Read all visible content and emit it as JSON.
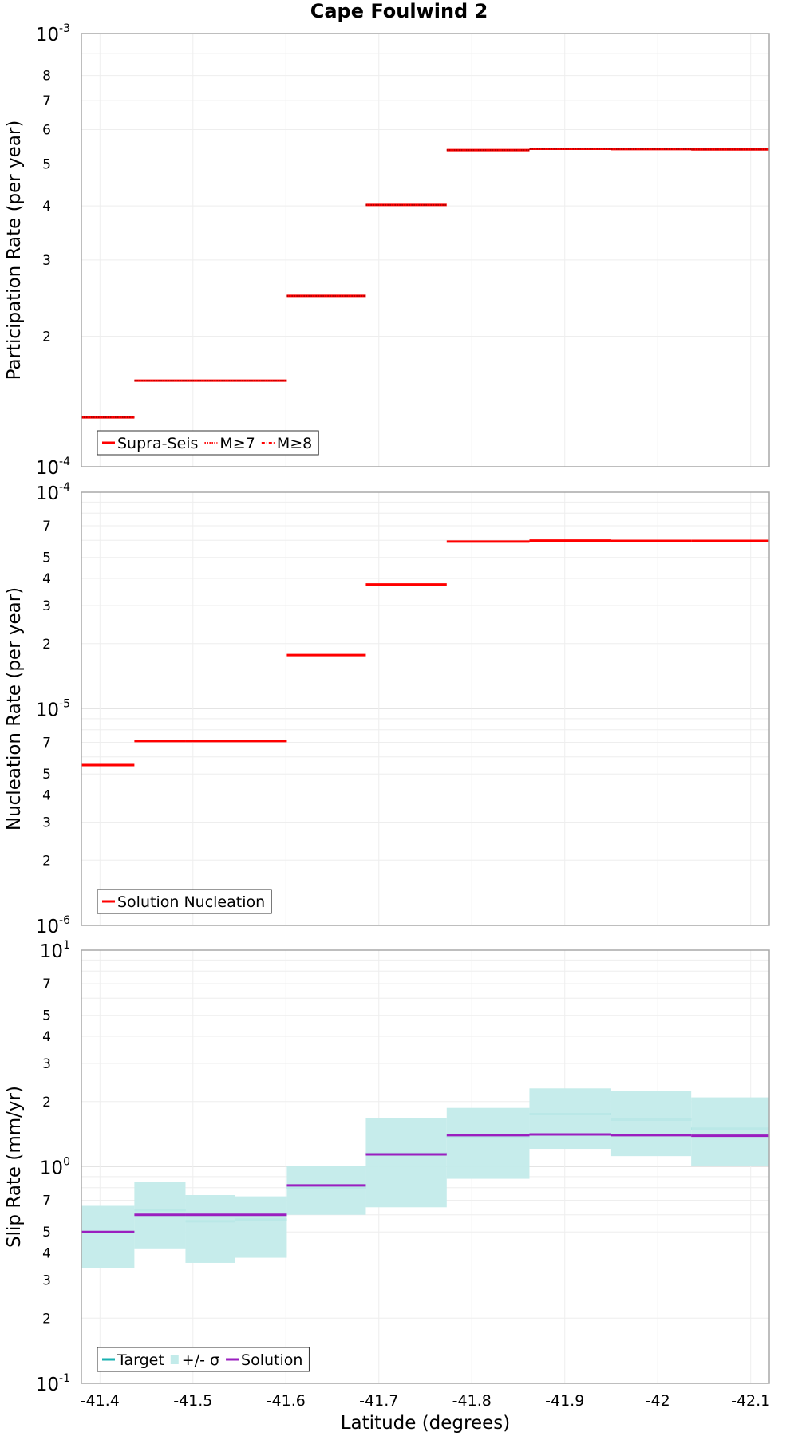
{
  "chart_data": {
    "title": "Cape Foulwind 2",
    "xlabel": "Latitude (degrees)",
    "xlim": [
      -41.38,
      -42.12
    ],
    "xticks": [
      -41.4,
      -41.5,
      -41.6,
      -41.7,
      -41.8,
      -41.9,
      -42.0,
      -42.1
    ],
    "xtick_labels": [
      "-41.4",
      "-41.5",
      "-41.6",
      "-41.7",
      "-41.8",
      "-41.9",
      "-42",
      "-42.1"
    ],
    "subsection_edges": [
      -41.38,
      -41.437,
      -41.492,
      -41.545,
      -41.601,
      -41.686,
      -41.773,
      -41.862,
      -41.95,
      -42.036,
      -42.12
    ],
    "panels": [
      {
        "type": "line",
        "scale": "log",
        "ylabel": "Participation Rate (per year)",
        "ylim": [
          0.0001,
          0.001
        ],
        "major_labels": [
          {
            "base": "10",
            "exp": "-4",
            "value": 0.0001
          },
          {
            "base": "10",
            "exp": "-3",
            "value": 0.001
          }
        ],
        "minor_labels": [
          "2",
          "3",
          "4",
          "5",
          "6",
          "7",
          "8"
        ],
        "series": [
          {
            "name": "Supra-Seis",
            "color": "#ff0000",
            "style": "solid",
            "values": [
              0.00013,
              0.000158,
              0.000158,
              0.000158,
              0.000248,
              0.000402,
              0.000538,
              0.000542,
              0.000541,
              0.00054
            ]
          },
          {
            "name": "M≥7",
            "color": "#ff0000",
            "style": "dotted",
            "values": [
              0.00013,
              0.000158,
              0.000158,
              0.000158,
              0.000248,
              0.000402,
              0.000538,
              0.000542,
              0.000541,
              0.00054
            ]
          },
          {
            "name": "M≥8",
            "color": "#ff0000",
            "style": "dashdot",
            "values": [
              null,
              null,
              null,
              null,
              null,
              null,
              null,
              null,
              null,
              null
            ]
          }
        ],
        "legend": [
          "Supra-Seis",
          "M≥7",
          "M≥8"
        ]
      },
      {
        "type": "line",
        "scale": "log",
        "ylabel": "Nucleation Rate (per year)",
        "ylim": [
          1e-06,
          0.0001
        ],
        "major_labels": [
          {
            "base": "10",
            "exp": "-6",
            "value": 1e-06
          },
          {
            "base": "10",
            "exp": "-5",
            "value": 1e-05
          },
          {
            "base": "10",
            "exp": "-4",
            "value": 0.0001
          }
        ],
        "minor_labels": [
          "2",
          "3",
          "4",
          "5",
          "7"
        ],
        "series": [
          {
            "name": "Solution Nucleation",
            "color": "#ff0000",
            "style": "solid",
            "values": [
              5.5e-06,
              7.1e-06,
              7.1e-06,
              7.1e-06,
              1.77e-05,
              3.75e-05,
              5.92e-05,
              5.98e-05,
              5.96e-05,
              5.96e-05
            ]
          }
        ],
        "legend": [
          "Solution Nucleation"
        ]
      },
      {
        "type": "line",
        "scale": "log",
        "ylabel": "Slip Rate (mm/yr)",
        "ylim": [
          0.1,
          10
        ],
        "major_labels": [
          {
            "base": "10",
            "exp": "-1",
            "value": 0.1
          },
          {
            "base": "10",
            "exp": "0",
            "value": 1
          },
          {
            "base": "10",
            "exp": "1",
            "value": 10
          }
        ],
        "minor_labels": [
          "2",
          "3",
          "4",
          "5",
          "7"
        ],
        "series": [
          {
            "name": "Target",
            "color": "#1ab0b0",
            "style": "solid",
            "values": [
              0.5,
              0.63,
              0.56,
              0.57,
              0.8,
              1.15,
              1.37,
              1.75,
              1.65,
              1.5
            ]
          },
          {
            "name": "+/- σ",
            "color": "#c3ebea",
            "style": "band",
            "lower": [
              0.34,
              0.42,
              0.36,
              0.38,
              0.6,
              0.65,
              0.88,
              1.21,
              1.12,
              1.01
            ],
            "upper": [
              0.66,
              0.85,
              0.74,
              0.73,
              1.01,
              1.68,
              1.87,
              2.3,
              2.24,
              2.09
            ]
          },
          {
            "name": "Solution",
            "color": "#9a1fbf",
            "style": "solid",
            "values": [
              0.5,
              0.6,
              0.6,
              0.6,
              0.82,
              1.14,
              1.4,
              1.41,
              1.4,
              1.39
            ]
          }
        ],
        "legend": [
          "Target",
          "+/- σ",
          "Solution"
        ]
      }
    ]
  }
}
